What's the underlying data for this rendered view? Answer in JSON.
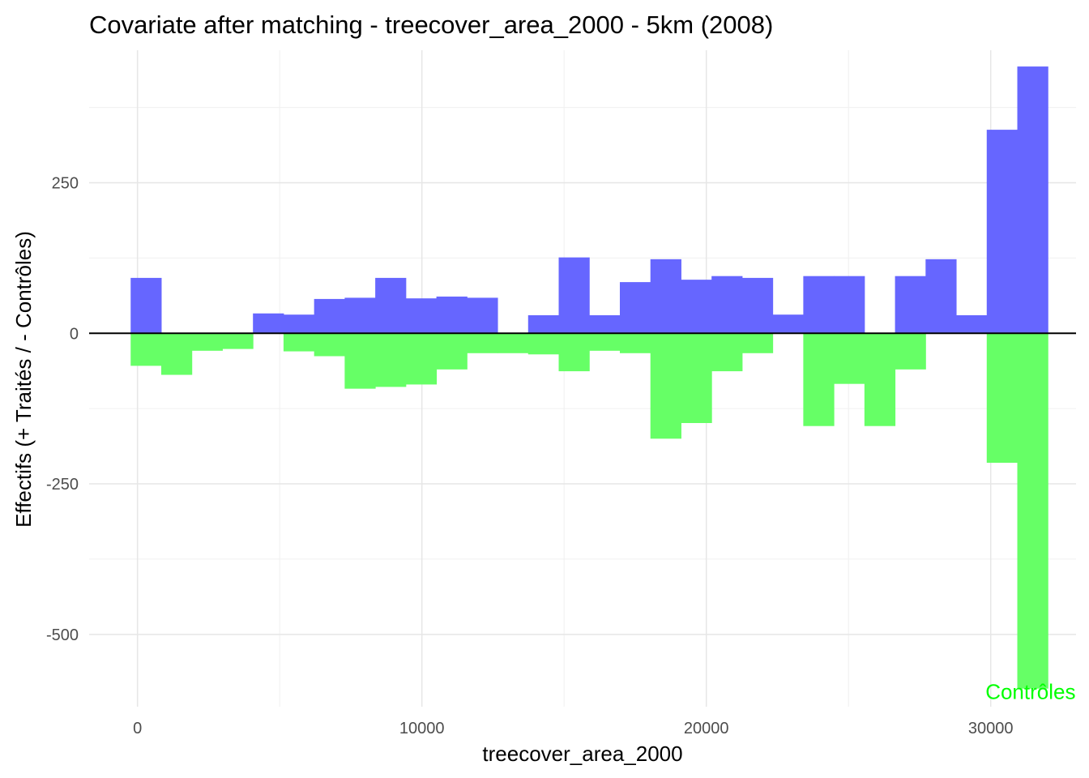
{
  "chart_data": {
    "type": "bar",
    "title": "Covariate after matching - treecover_area_2000 - 5km (2008)",
    "xlabel": "treecover_area_2000",
    "ylabel": "Effectifs (+ Traités / - Contrôles)",
    "xlim": [
      -1700,
      33000
    ],
    "ylim": [
      -620,
      470
    ],
    "x_ticks": [
      {
        "value": 0,
        "label": "0"
      },
      {
        "value": 10000,
        "label": "10000"
      },
      {
        "value": 20000,
        "label": "20000"
      },
      {
        "value": 30000,
        "label": "30000"
      }
    ],
    "y_ticks": [
      {
        "value": -500,
        "label": "-500"
      },
      {
        "value": -250,
        "label": "-250"
      },
      {
        "value": 0,
        "label": "0"
      },
      {
        "value": 250,
        "label": "250"
      }
    ],
    "grid": true,
    "bin_width": 1075,
    "bin_starts": [
      -240,
      835,
      1910,
      2985,
      4060,
      5135,
      6210,
      7285,
      8360,
      9435,
      10510,
      11585,
      12660,
      13735,
      14810,
      15885,
      16960,
      18035,
      19110,
      20185,
      21260,
      22335,
      23410,
      24485,
      25560,
      26635,
      27710,
      28785,
      29860,
      30935
    ],
    "series": [
      {
        "name": "Traités",
        "color": "#6666ff",
        "values": [
          92,
          0,
          0,
          0,
          33,
          31,
          57,
          59,
          92,
          58,
          61,
          59,
          0,
          30,
          126,
          30,
          85,
          123,
          89,
          95,
          92,
          31,
          95,
          95,
          0,
          95,
          123,
          30,
          338,
          443
        ]
      },
      {
        "name": "Contrôles",
        "color": "#66ff66",
        "values": [
          -54,
          -69,
          -29,
          -26,
          0,
          -30,
          -38,
          -92,
          -89,
          -85,
          -60,
          -33,
          -33,
          -35,
          -63,
          -29,
          -33,
          -175,
          -149,
          -63,
          -33,
          0,
          -154,
          -84,
          -154,
          -60,
          0,
          0,
          -215,
          -590
        ]
      }
    ],
    "annotations": [
      {
        "text": "Contrôles",
        "color": "#00ff00",
        "x": 31400,
        "y": -595
      }
    ]
  }
}
